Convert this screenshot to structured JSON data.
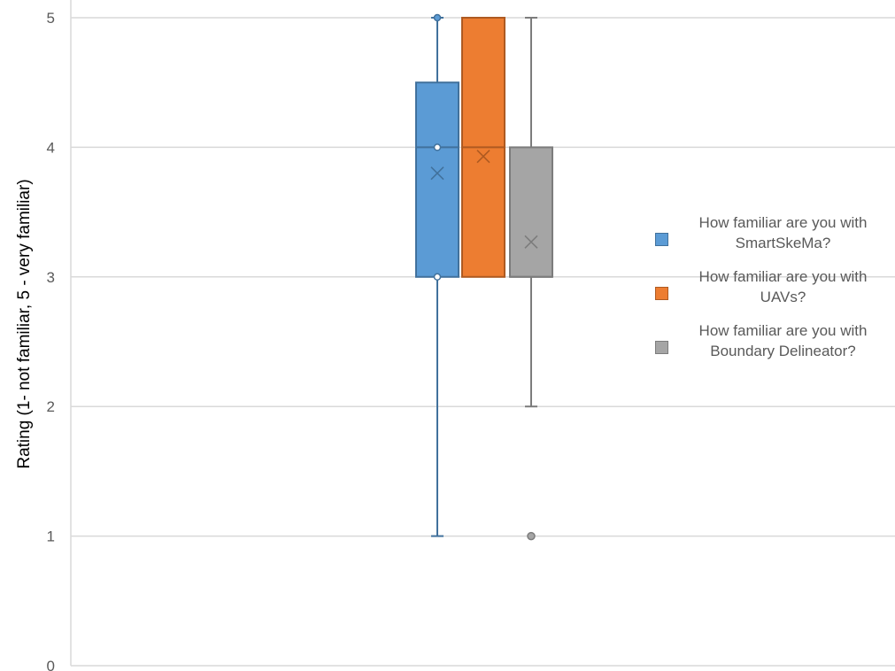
{
  "chart_data": {
    "type": "box",
    "ylabel": "Rating  (1- not familiar,  5 - very familiar)",
    "ylim": [
      0,
      5
    ],
    "yticks": [
      "0",
      "1",
      "2",
      "3",
      "4",
      "5"
    ],
    "grid": true,
    "legend_position": "right",
    "series": [
      {
        "name_line1": "How familiar are you with",
        "name_line2": "SmartSkeMa?",
        "color": "#5B9BD5",
        "border": "#41719C",
        "whisker_min": 1,
        "q1": 3,
        "median": 4,
        "q3": 4.5,
        "whisker_max": 5,
        "mean": 3.8,
        "points": [
          3,
          4,
          5
        ],
        "outliers": []
      },
      {
        "name_line1": "How familiar are you with",
        "name_line2": "UAVs?",
        "color": "#ED7D31",
        "border": "#AE5A21",
        "whisker_min": 3,
        "q1": 3,
        "median": 4,
        "q3": 5,
        "whisker_max": 5,
        "mean": 3.93,
        "points": [],
        "outliers": []
      },
      {
        "name_line1": "How familiar are you with",
        "name_line2": "Boundary Delineator?",
        "color": "#A5A5A5",
        "border": "#7C7C7C",
        "whisker_min": 2,
        "q1": 3,
        "median": 3,
        "q3": 4,
        "whisker_max": 5,
        "mean": 3.27,
        "points": [],
        "outliers": [
          1
        ]
      }
    ]
  }
}
